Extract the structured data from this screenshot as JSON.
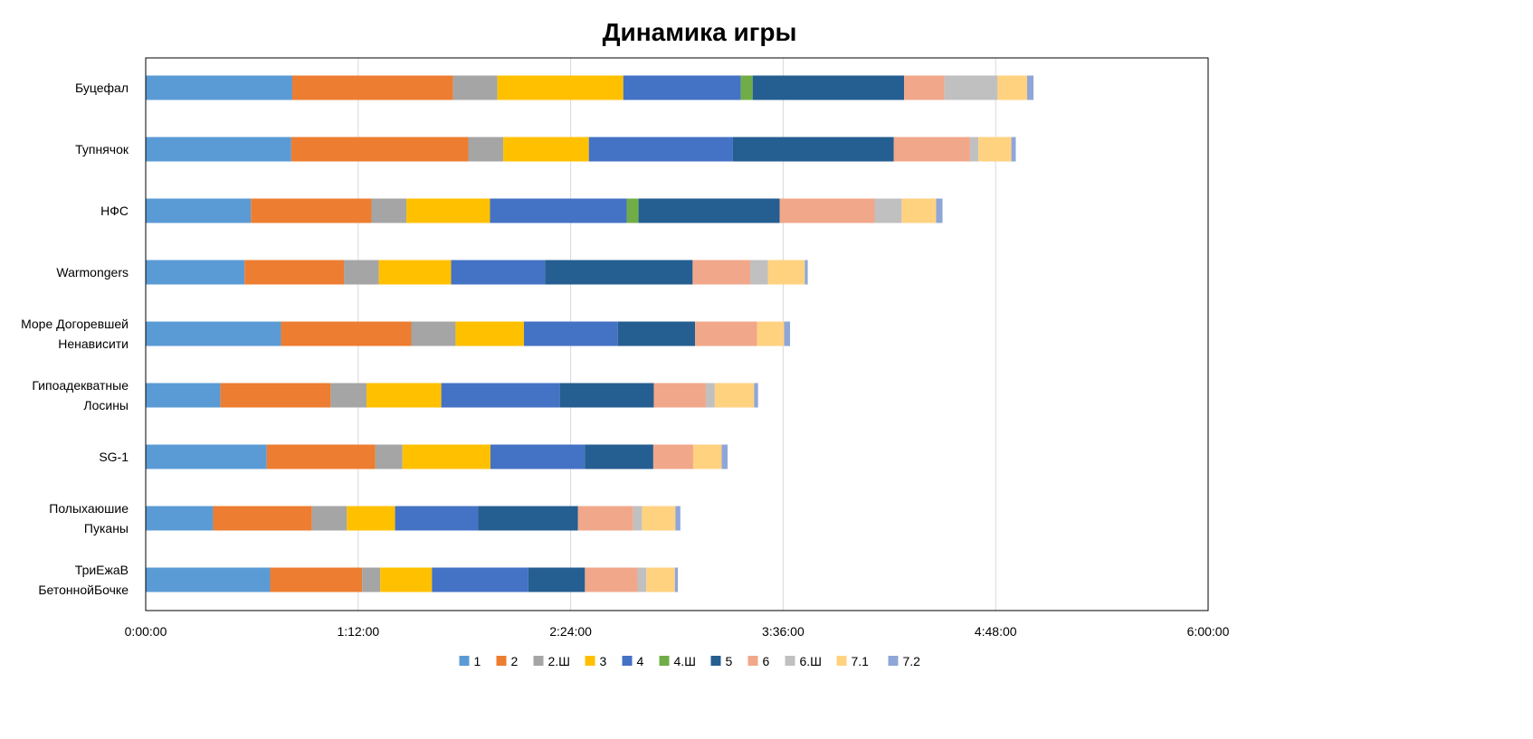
{
  "chart_data": {
    "type": "bar",
    "orientation": "horizontal",
    "stacked": true,
    "title": "Динамика игры",
    "xlabel": "",
    "ylabel": "",
    "xlim_seconds": [
      0,
      21600
    ],
    "x_ticks": [
      {
        "value": 0,
        "label": "0:00:00"
      },
      {
        "value": 4320,
        "label": "1:12:00"
      },
      {
        "value": 8640,
        "label": "2:24:00"
      },
      {
        "value": 12960,
        "label": "3:36:00"
      },
      {
        "value": 17280,
        "label": "4:48:00"
      },
      {
        "value": 21600,
        "label": "6:00:00"
      }
    ],
    "grid": "vertical",
    "legend_position": "bottom",
    "categories": [
      "Буцефал",
      "Тупнячок",
      "НФС",
      "Warmongers",
      "Море Догоревшей Ненависити",
      "Гипоадекватные Лосины",
      "SG-1",
      "Полыхаюшие Пуканы",
      "ТриЕжаВ БетоннойБочке"
    ],
    "category_lines": [
      [
        "Буцефал"
      ],
      [
        "Тупнячок"
      ],
      [
        "НФС"
      ],
      [
        "Warmongers"
      ],
      [
        "Море Догоревшей",
        "Ненависити"
      ],
      [
        "Гипоадекватные",
        "Лосины"
      ],
      [
        "SG-1"
      ],
      [
        "Полыхаюшие",
        "Пуканы"
      ],
      [
        "ТриЕжаВ",
        "БетоннойБочке"
      ]
    ],
    "series": [
      {
        "name": "1",
        "color": "#5B9BD5",
        "values": [
          2980,
          2960,
          2140,
          2010,
          2750,
          1520,
          2460,
          1370,
          2530
        ]
      },
      {
        "name": "2",
        "color": "#ED7D31",
        "values": [
          3270,
          3600,
          2450,
          2020,
          2650,
          2240,
          2210,
          2010,
          1870
        ]
      },
      {
        "name": "2.Ш",
        "color": "#A5A5A5",
        "values": [
          900,
          710,
          710,
          710,
          900,
          730,
          550,
          710,
          370
        ]
      },
      {
        "name": "3",
        "color": "#FFC000",
        "values": [
          2560,
          1740,
          1700,
          1470,
          1390,
          1520,
          1790,
          980,
          1050
        ]
      },
      {
        "name": "4",
        "color": "#4472C4",
        "values": [
          2390,
          2930,
          2780,
          1910,
          1910,
          2410,
          1920,
          1690,
          1960
        ]
      },
      {
        "name": "4.Ш",
        "color": "#70AD47",
        "values": [
          240,
          0,
          240,
          0,
          0,
          0,
          0,
          0,
          0
        ]
      },
      {
        "name": "5",
        "color": "#255E91",
        "values": [
          3080,
          3270,
          2870,
          3000,
          1570,
          1910,
          1390,
          2030,
          1150
        ]
      },
      {
        "name": "6",
        "color": "#F1A78A",
        "values": [
          820,
          1550,
          1930,
          1170,
          1260,
          1060,
          810,
          1120,
          1070
        ]
      },
      {
        "name": "6.Ш",
        "color": "#C0C0C0",
        "values": [
          1080,
          170,
          550,
          360,
          0,
          180,
          0,
          180,
          180
        ]
      },
      {
        "name": "7.1",
        "color": "#FFD280",
        "values": [
          600,
          670,
          700,
          750,
          550,
          800,
          580,
          680,
          580
        ]
      },
      {
        "name": "7.2",
        "color": "#8FA6D8",
        "values": [
          130,
          90,
          130,
          60,
          120,
          80,
          120,
          100,
          60
        ]
      }
    ]
  }
}
